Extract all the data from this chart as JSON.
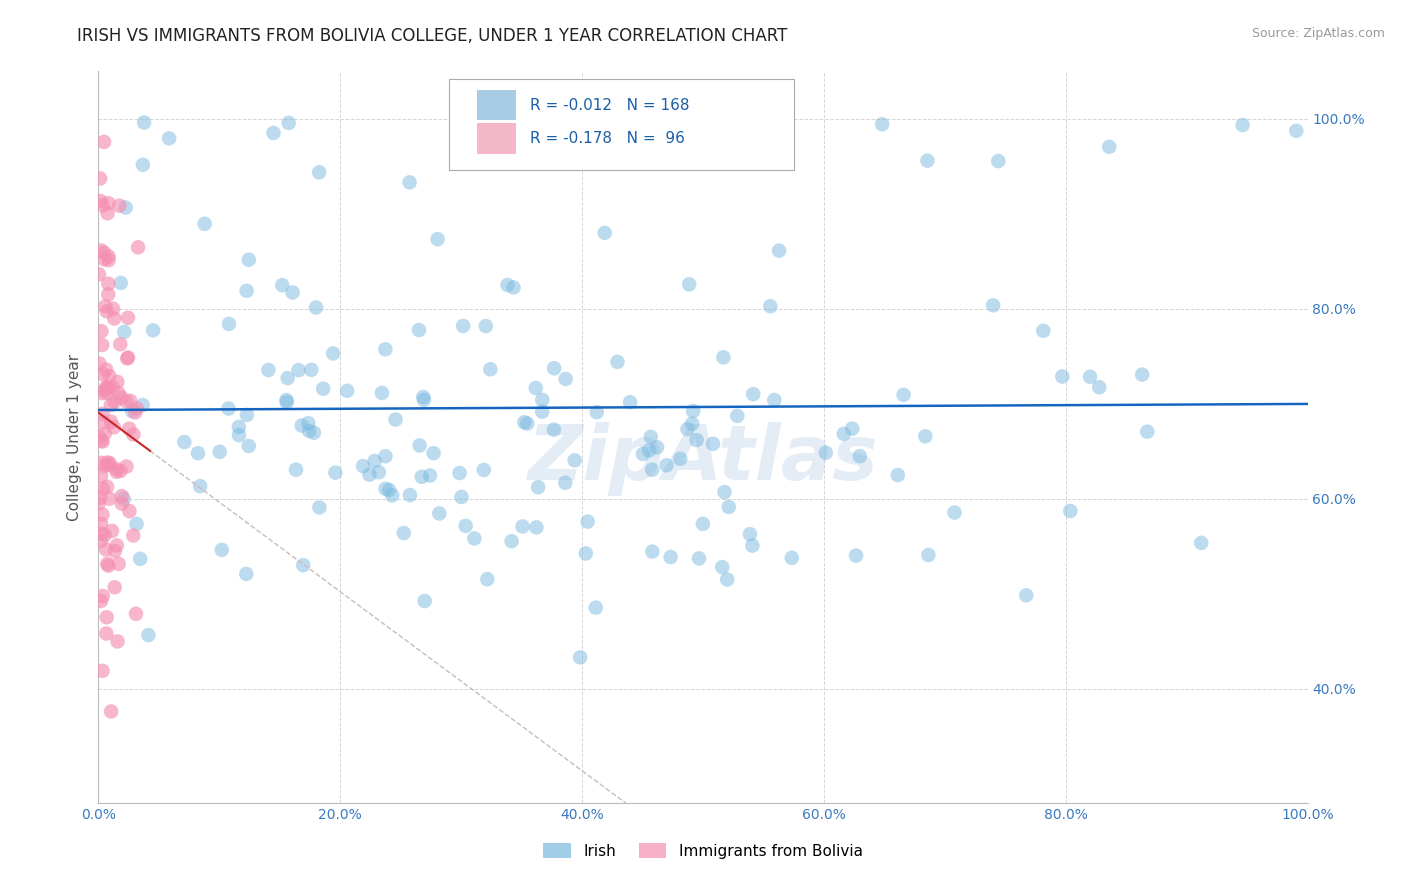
{
  "title": "IRISH VS IMMIGRANTS FROM BOLIVIA COLLEGE, UNDER 1 YEAR CORRELATION CHART",
  "source": "Source: ZipAtlas.com",
  "ylabel": "College, Under 1 year",
  "watermark": "ZipAtlas",
  "legend_irish": "Irish",
  "legend_bolivia": "Immigrants from Bolivia",
  "R_irish": -0.012,
  "N_irish": 168,
  "R_bolivia": -0.178,
  "N_bolivia": 96,
  "irish_color": "#7ab8e0",
  "bolivia_color": "#f48fb1",
  "regression_irish_color": "#1565c0",
  "regression_bolivia_color": "#c62828",
  "regression_bolivia_dashed_color": "#ccbbbb",
  "xlim": [
    0.0,
    1.0
  ],
  "ylim": [
    0.28,
    1.05
  ],
  "x_ticks": [
    0.0,
    0.2,
    0.4,
    0.6,
    0.8,
    1.0
  ],
  "y_ticks": [
    0.4,
    0.6,
    0.8,
    1.0
  ],
  "x_tick_labels": [
    "0.0%",
    "20.0%",
    "40.0%",
    "60.0%",
    "80.0%",
    "100.0%"
  ],
  "y_tick_labels_right": [
    "40.0%",
    "60.0%",
    "80.0%",
    "100.0%"
  ],
  "background_color": "#ffffff",
  "grid_color": "#cccccc",
  "title_fontsize": 12,
  "axis_label_fontsize": 11,
  "tick_fontsize": 10
}
